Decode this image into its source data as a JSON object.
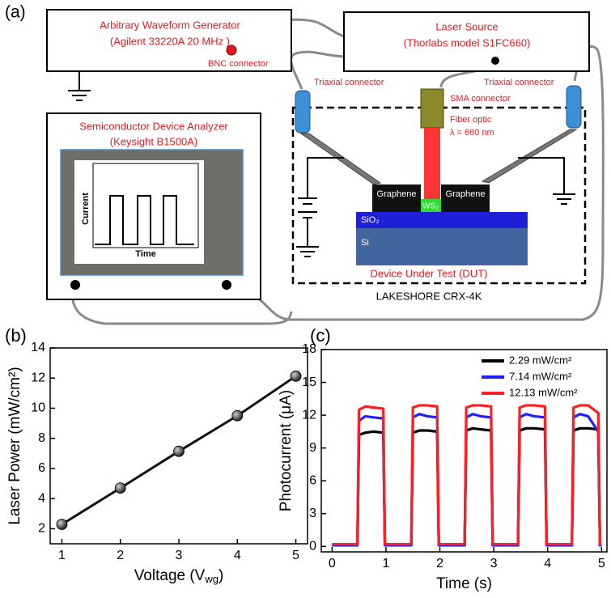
{
  "diagram": {
    "panel_label": "(a)",
    "awg": {
      "title": "Arbitrary Waveform Generator",
      "model": "(Agilent 33220A 20 MHz )",
      "connector": "BNC connector"
    },
    "laser": {
      "title": "Laser Source",
      "model": "(Thorlabs model S1FC660)"
    },
    "analyzer": {
      "title": "Semiconductor Device Analyzer",
      "model": "(Keysight B1500A)",
      "inset_ylabel": "Current",
      "inset_xlabel": "Time"
    },
    "connectors": {
      "triaxial_left": "Triaxial  connector",
      "triaxial_right": "Triaxial  connector",
      "sma": "SMA  connector",
      "fiber": "Fiber optic",
      "wavelength": "λ = 660 nm"
    },
    "device": {
      "graphene_left": "Graphene",
      "graphene_right": "Graphene",
      "ws2": "WS₂",
      "sio2": "SiO₂",
      "si": "Si",
      "label": "Device Under Test (DUT)"
    },
    "cryostat": "LAKESHORE CRX-4K"
  },
  "chart_data": [
    {
      "type": "line",
      "panel_label": "(b)",
      "markers": true,
      "x": [
        1,
        2,
        3,
        4,
        5
      ],
      "series": [
        {
          "color": "#111111",
          "values": [
            2.29,
            4.7,
            7.14,
            9.5,
            12.13
          ]
        }
      ],
      "x_label": [
        {
          "text": "Voltage (V"
        },
        {
          "text": "wg",
          "sub": true
        },
        {
          "text": ")"
        }
      ],
      "y_label": "Laser Power (mW/cm²)",
      "xlim": [
        0.8,
        5.2
      ],
      "xticks": [
        1,
        2,
        3,
        4,
        5
      ],
      "ylim": [
        1,
        14
      ],
      "yticks": [
        2,
        4,
        6,
        8,
        10,
        12,
        14
      ]
    },
    {
      "type": "line",
      "panel_label": "(c)",
      "markers": false,
      "legend": "upper right",
      "x": [
        0,
        0.47,
        0.5,
        0.62,
        0.77,
        0.95,
        0.98,
        1.47,
        1.5,
        1.62,
        1.77,
        1.95,
        1.98,
        2.46,
        2.49,
        2.61,
        2.76,
        2.95,
        2.98,
        3.45,
        3.48,
        3.6,
        3.75,
        3.95,
        3.98,
        4.45,
        4.48,
        4.6,
        4.75,
        4.94,
        4.97,
        5.0
      ],
      "series": [
        {
          "name": "2.29 mW/cm²",
          "color": "#000000",
          "values": [
            0.1,
            0.1,
            10.2,
            10.4,
            10.5,
            10.4,
            0.1,
            0.1,
            10.4,
            10.6,
            10.6,
            10.5,
            0.1,
            0.1,
            10.6,
            10.8,
            10.7,
            10.6,
            0.1,
            0.1,
            10.6,
            10.8,
            10.8,
            10.7,
            0.1,
            0.1,
            10.6,
            10.8,
            10.8,
            10.7,
            0.1,
            0.1
          ]
        },
        {
          "name": "7.14 mW/cm²",
          "color": "#1f1fff",
          "values": [
            0.1,
            0.1,
            11.5,
            11.9,
            11.8,
            11.7,
            0.1,
            0.1,
            11.8,
            12.1,
            11.9,
            11.8,
            0.1,
            0.1,
            11.8,
            12.1,
            11.9,
            11.8,
            0.1,
            0.1,
            11.8,
            12.1,
            11.9,
            11.8,
            0.1,
            0.1,
            11.8,
            12.1,
            11.9,
            10.5,
            0.1,
            0.1
          ]
        },
        {
          "name": "12.13 mW/cm²",
          "color": "#ff1f1f",
          "values": [
            0.2,
            0.2,
            12.5,
            12.8,
            12.7,
            12.6,
            0.2,
            0.2,
            12.7,
            12.9,
            12.9,
            12.8,
            0.2,
            0.2,
            12.7,
            12.9,
            12.9,
            12.8,
            0.2,
            0.2,
            12.7,
            12.9,
            12.9,
            12.8,
            0.2,
            0.2,
            12.7,
            12.9,
            12.9,
            12.2,
            0.2,
            0.2
          ]
        }
      ],
      "x_label": "Time (s)",
      "y_label": "Photocurrent (μA)",
      "xlim": [
        -0.2,
        5.1
      ],
      "xticks": [
        0,
        1,
        2,
        3,
        4,
        5
      ],
      "ylim": [
        -0.5,
        18
      ],
      "yticks": [
        0,
        3,
        6,
        9,
        12,
        15,
        18
      ]
    }
  ]
}
